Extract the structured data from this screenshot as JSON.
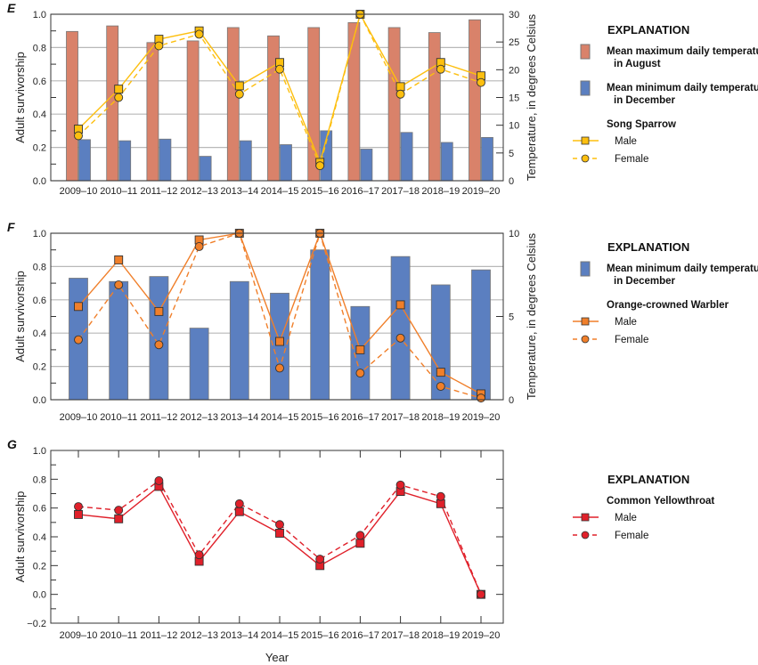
{
  "chart_data": [
    {
      "panel": "E",
      "type": "bar+line",
      "categories": [
        "2009–10",
        "2010–11",
        "2011–12",
        "2012–13",
        "2013–14",
        "2014–15",
        "2015–16",
        "2016–17",
        "2017–18",
        "2018–19",
        "2019–20"
      ],
      "ylabel": "Adult survivorship",
      "ylabel_right": "Temperature, in degrees Celsius",
      "ylim": [
        0,
        1.0
      ],
      "yticks": [
        "0.0",
        "0.2",
        "0.4",
        "0.6",
        "0.8",
        "1.0"
      ],
      "ylim_right": [
        0,
        30
      ],
      "yticks_right": [
        "0",
        "5",
        "10",
        "15",
        "20",
        "25",
        "30"
      ],
      "bars": [
        {
          "name": "Mean maximum daily temperature in August",
          "axis": "right",
          "color": "#d9826a",
          "values": [
            26.9,
            27.9,
            24.9,
            25.2,
            27.6,
            26.1,
            27.6,
            28.5,
            27.6,
            26.7,
            29.0
          ]
        },
        {
          "name": "Mean minimum daily temperature in December",
          "axis": "right",
          "color": "#5b7fc0",
          "values": [
            7.4,
            7.2,
            7.5,
            4.4,
            7.2,
            6.5,
            9.0,
            5.7,
            8.7,
            6.9,
            7.8
          ]
        }
      ],
      "species": "Song Sparrow",
      "series": [
        {
          "name": "Male",
          "marker": "square",
          "dash": false,
          "color": "#fdbf0f",
          "values": [
            0.31,
            0.55,
            0.85,
            0.9,
            0.57,
            0.71,
            0.11,
            1.0,
            0.565,
            0.71,
            0.63
          ]
        },
        {
          "name": "Female",
          "marker": "circle",
          "dash": true,
          "color": "#fdbf0f",
          "values": [
            0.27,
            0.5,
            0.81,
            0.88,
            0.52,
            0.67,
            0.09,
            1.0,
            0.52,
            0.67,
            0.59
          ]
        }
      ],
      "legend_title": "EXPLANATION",
      "legend_bar_lines": [
        [
          "Mean maximum daily temperature",
          "in August"
        ],
        [
          "Mean minimum daily temperature",
          "in December"
        ]
      ]
    },
    {
      "panel": "F",
      "type": "bar+line",
      "categories": [
        "2009–10",
        "2010–11",
        "2011–12",
        "2012–13",
        "2013–14",
        "2014–15",
        "2015–16",
        "2016–17",
        "2017–18",
        "2018–19",
        "2019–20"
      ],
      "ylabel": "Adult survivorship",
      "ylabel_right": "Temperature, in degrees Celsius",
      "ylim": [
        0,
        1.0
      ],
      "yticks": [
        "0.0",
        "0.2",
        "0.4",
        "0.6",
        "0.8",
        "1.0"
      ],
      "ylim_right": [
        0,
        10
      ],
      "yticks_right": [
        "0",
        "5",
        "10"
      ],
      "bars": [
        {
          "name": "Mean minimum daily temperature in December",
          "axis": "right",
          "color": "#5b7fc0",
          "values": [
            7.3,
            7.1,
            7.4,
            4.3,
            7.1,
            6.4,
            9.0,
            5.6,
            8.6,
            6.9,
            7.8
          ]
        }
      ],
      "species": "Orange-crowned Warbler",
      "series": [
        {
          "name": "Male",
          "marker": "square",
          "dash": false,
          "color": "#f07f2a",
          "values": [
            0.56,
            0.84,
            0.53,
            0.96,
            1.0,
            0.35,
            1.0,
            0.3,
            0.57,
            0.165,
            0.035
          ]
        },
        {
          "name": "Female",
          "marker": "circle",
          "dash": true,
          "color": "#f07f2a",
          "values": [
            0.36,
            0.69,
            0.33,
            0.92,
            1.0,
            0.19,
            1.0,
            0.16,
            0.37,
            0.08,
            0.01
          ]
        }
      ],
      "legend_title": "EXPLANATION",
      "legend_bar_lines": [
        [
          "Mean minimum daily temperature",
          "in December"
        ]
      ]
    },
    {
      "panel": "G",
      "type": "line",
      "categories": [
        "2009–10",
        "2010–11",
        "2011–12",
        "2012–13",
        "2013–14",
        "2014–15",
        "2015–16",
        "2016–17",
        "2017–18",
        "2018–19",
        "2019–20"
      ],
      "ylabel": "Adult survivorship",
      "xlabel": "Year",
      "ylim": [
        -0.2,
        1.0
      ],
      "yticks": [
        "−0.2",
        "0.0",
        "0.2",
        "0.4",
        "0.6",
        "0.8",
        "1.0"
      ],
      "bars": [],
      "species": "Common Yellowthroat",
      "series": [
        {
          "name": "Male",
          "marker": "square",
          "dash": false,
          "color": "#e0202a",
          "values": [
            0.555,
            0.525,
            0.75,
            0.23,
            0.575,
            0.425,
            0.2,
            0.355,
            0.715,
            0.63,
            0.0
          ]
        },
        {
          "name": "Female",
          "marker": "circle",
          "dash": true,
          "color": "#e0202a",
          "values": [
            0.61,
            0.585,
            0.79,
            0.275,
            0.63,
            0.485,
            0.245,
            0.41,
            0.76,
            0.68,
            0.0
          ]
        }
      ],
      "legend_title": "EXPLANATION",
      "legend_bar_lines": []
    }
  ]
}
